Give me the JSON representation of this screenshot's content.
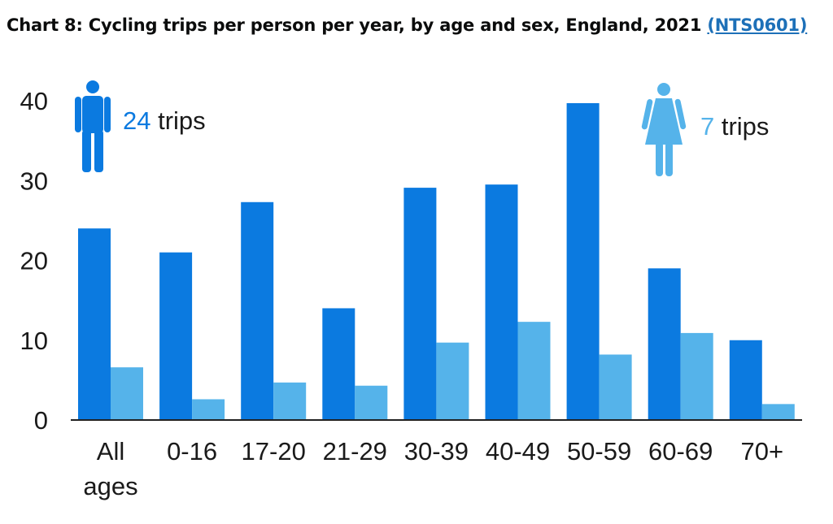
{
  "header": {
    "title": "Chart 8: Cycling trips per person per year, by age and sex, England, 2021",
    "link_label": "(NTS0601)"
  },
  "chart_data": {
    "type": "bar",
    "categories": [
      [
        "All",
        "ages"
      ],
      [
        "0-16"
      ],
      [
        "17-20"
      ],
      [
        "21-29"
      ],
      [
        "30-39"
      ],
      [
        "40-49"
      ],
      [
        "50-59"
      ],
      [
        "60-69"
      ],
      [
        "70+"
      ]
    ],
    "series": [
      {
        "key": "male",
        "values": [
          24,
          21,
          27.3,
          14,
          29.1,
          29.5,
          39.7,
          19,
          10
        ],
        "color": "#0b7ae0"
      },
      {
        "key": "female",
        "values": [
          6.6,
          2.6,
          4.7,
          4.3,
          9.7,
          12.3,
          8.2,
          10.9,
          2
        ]
      }
    ],
    "colors": {
      "male": "#0b7ae0",
      "female": "#55b3ea"
    },
    "ylim": [
      0,
      40
    ],
    "yticks": [
      0,
      10,
      20,
      30,
      40
    ],
    "legend": {
      "male": {
        "icon": "male-figure-icon",
        "number": "24",
        "text": " trips"
      },
      "female": {
        "icon": "female-figure-icon",
        "number": "7",
        "text": " trips"
      }
    }
  }
}
